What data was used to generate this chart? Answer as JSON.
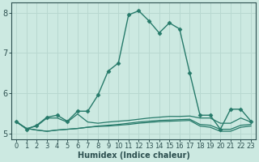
{
  "xlabel": "Humidex (Indice chaleur)",
  "x_values": [
    0,
    1,
    2,
    3,
    4,
    5,
    6,
    7,
    8,
    9,
    10,
    11,
    12,
    13,
    14,
    15,
    16,
    17,
    18,
    19,
    20,
    21,
    22,
    23
  ],
  "lines": [
    {
      "y": [
        5.3,
        5.1,
        5.2,
        5.4,
        5.45,
        5.3,
        5.55,
        5.55,
        5.95,
        6.55,
        6.75,
        7.95,
        8.05,
        7.8,
        7.5,
        7.75,
        7.6,
        6.5,
        5.45,
        5.45,
        5.1,
        5.6,
        5.6,
        5.3
      ],
      "color": "#267a6a",
      "linewidth": 1.0,
      "marker": "D",
      "markersize": 2.5
    },
    {
      "y": [
        5.28,
        5.12,
        5.18,
        5.38,
        5.38,
        5.28,
        5.48,
        5.28,
        5.25,
        5.28,
        5.3,
        5.32,
        5.35,
        5.38,
        5.4,
        5.42,
        5.42,
        5.43,
        5.38,
        5.38,
        5.25,
        5.25,
        5.38,
        5.28
      ],
      "color": "#267a6a",
      "linewidth": 0.9,
      "marker": null,
      "markersize": 0
    },
    {
      "y": [
        5.28,
        5.12,
        5.08,
        5.05,
        5.08,
        5.1,
        5.12,
        5.15,
        5.18,
        5.2,
        5.22,
        5.25,
        5.28,
        5.3,
        5.32,
        5.33,
        5.34,
        5.35,
        5.22,
        5.2,
        5.1,
        5.1,
        5.2,
        5.22
      ],
      "color": "#267a6a",
      "linewidth": 0.9,
      "marker": null,
      "markersize": 0
    },
    {
      "y": [
        5.28,
        5.12,
        5.08,
        5.05,
        5.08,
        5.1,
        5.12,
        5.15,
        5.17,
        5.18,
        5.2,
        5.22,
        5.25,
        5.27,
        5.29,
        5.3,
        5.31,
        5.32,
        5.18,
        5.15,
        5.05,
        5.05,
        5.15,
        5.18
      ],
      "color": "#267a6a",
      "linewidth": 0.9,
      "marker": null,
      "markersize": 0
    }
  ],
  "bg_color": "#cce9e1",
  "grid_color": "#b8d8d0",
  "axis_color": "#2d6060",
  "tick_color": "#2d5050",
  "ylim": [
    4.85,
    8.25
  ],
  "xlim": [
    -0.5,
    23.5
  ],
  "yticks": [
    5,
    6,
    7,
    8
  ],
  "xticks": [
    0,
    1,
    2,
    3,
    4,
    5,
    6,
    7,
    8,
    9,
    10,
    11,
    12,
    13,
    14,
    15,
    16,
    17,
    18,
    19,
    20,
    21,
    22,
    23
  ]
}
